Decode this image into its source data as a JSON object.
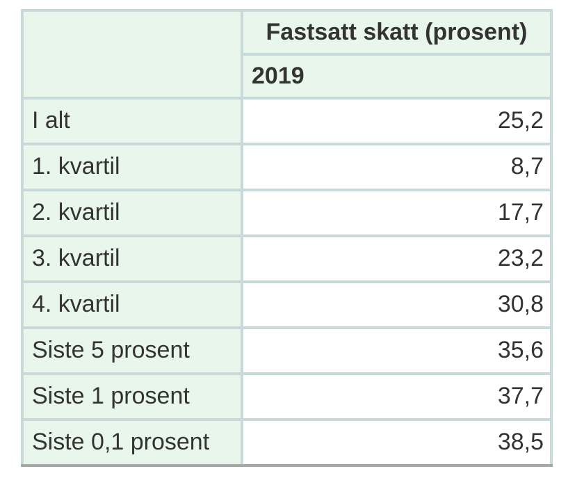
{
  "table": {
    "column_group": "Fastsatt skatt (prosent)",
    "year": "2019",
    "rows": [
      {
        "label": "I alt",
        "value": "25,2"
      },
      {
        "label": "1. kvartil",
        "value": "8,7"
      },
      {
        "label": "2. kvartil",
        "value": "17,7"
      },
      {
        "label": "3. kvartil",
        "value": "23,2"
      },
      {
        "label": "4. kvartil",
        "value": "30,8"
      },
      {
        "label": "Siste 5 prosent",
        "value": "35,6"
      },
      {
        "label": "Siste 1 prosent",
        "value": "37,7"
      },
      {
        "label": "Siste 0,1 prosent",
        "value": "38,5"
      }
    ]
  },
  "colors": {
    "cell_green": "#e9f6ec",
    "grid_border": "#c8d9da",
    "table_bottom_border": "#a5a6a6",
    "text": "#333333",
    "value_cell_background": "#ffffff"
  },
  "chart_data": {
    "type": "table",
    "title": "Fastsatt skatt (prosent)",
    "column_group_header": "Fastsatt skatt (prosent)",
    "column_header": "2019",
    "categories": [
      "I alt",
      "1. kvartil",
      "2. kvartil",
      "3. kvartil",
      "4. kvartil",
      "Siste 5 prosent",
      "Siste 1 prosent",
      "Siste 0,1 prosent"
    ],
    "values": [
      25.2,
      8.7,
      17.7,
      23.2,
      30.8,
      35.6,
      37.7,
      38.5
    ],
    "value_unit": "prosent",
    "decimal_separator": ","
  }
}
